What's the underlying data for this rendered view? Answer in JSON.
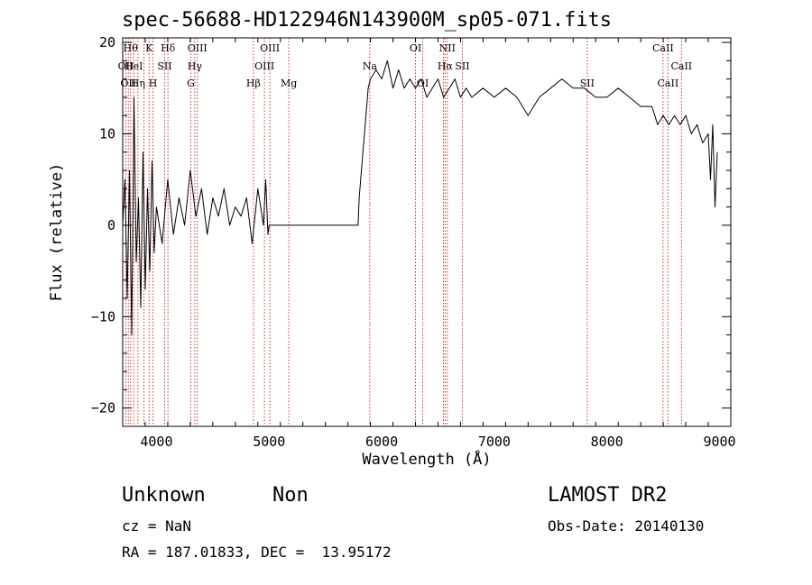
{
  "chart_data": {
    "type": "line",
    "title": "spec-56688-HD122946N143900M_sp05-071.fits",
    "xlabel": "Wavelength (Å)",
    "ylabel": "Flux (relative)",
    "xlim": [
      3700,
      9100
    ],
    "ylim": [
      -22,
      20.5
    ],
    "xticks": [
      4000,
      5000,
      6000,
      7000,
      8000,
      9000
    ],
    "xtick_labels": [
      "4000",
      "5000",
      "6000",
      "7000",
      "8000",
      "9000"
    ],
    "yticks": [
      -20,
      -10,
      0,
      10,
      20
    ],
    "ytick_labels": [
      "−20",
      "−10",
      "0",
      "10",
      "20"
    ],
    "grid": false,
    "series": [
      {
        "x": [
          3700,
          3720,
          3740,
          3760,
          3780,
          3800,
          3820,
          3840,
          3860,
          3880,
          3900,
          3920,
          3940,
          3960,
          3980,
          4000,
          4050,
          4100,
          4150,
          4200,
          4250,
          4300,
          4350,
          4400,
          4450,
          4500,
          4550,
          4600,
          4650,
          4700,
          4750,
          4800,
          4850,
          4900,
          4950,
          4970,
          4990,
          5000,
          5200,
          5400,
          5600,
          5790,
          5800,
          5820,
          5840,
          5860,
          5880,
          5900,
          5950,
          6000,
          6050,
          6100,
          6150,
          6200,
          6250,
          6300,
          6350,
          6400,
          6450,
          6500,
          6550,
          6600,
          6650,
          6700,
          6750,
          6800,
          6900,
          7000,
          7100,
          7200,
          7300,
          7400,
          7500,
          7600,
          7700,
          7800,
          7900,
          8000,
          8100,
          8200,
          8300,
          8400,
          8450,
          8500,
          8550,
          8600,
          8650,
          8700,
          8750,
          8800,
          8850,
          8900,
          8920,
          8940,
          8960,
          8980
        ],
        "y": [
          0,
          5,
          -8,
          6,
          -12,
          14,
          -4,
          3,
          -9,
          8,
          -7,
          4,
          -5,
          7,
          -3,
          2,
          -2,
          5,
          -1,
          3,
          0,
          6,
          1,
          4,
          -1,
          3,
          1,
          4,
          0,
          2,
          1,
          3,
          -2,
          4,
          0,
          5,
          -1,
          0,
          0,
          0,
          0,
          0,
          3,
          6,
          9,
          12,
          15,
          16,
          17,
          16,
          18,
          15,
          17,
          15,
          16,
          15,
          16,
          14,
          15,
          16,
          14,
          15,
          16,
          14,
          15,
          14,
          15,
          14,
          15,
          14,
          12,
          14,
          15,
          16,
          15,
          15,
          14,
          14,
          15,
          14,
          13,
          13,
          11,
          12,
          11,
          12,
          11,
          12,
          10,
          11,
          9,
          10,
          5,
          11,
          2,
          8
        ]
      }
    ],
    "lines": [
      {
        "x": 3728,
        "labels": [
          "OII"
        ]
      },
      {
        "x": 3750,
        "labels": [
          "OII"
        ]
      },
      {
        "x": 3770,
        "labels": [
          "Hθ"
        ]
      },
      {
        "x": 3798,
        "labels": [
          "HeI"
        ]
      },
      {
        "x": 3835,
        "labels": [
          "Hη"
        ]
      },
      {
        "x": 3889,
        "labels": [
          "HeI"
        ]
      },
      {
        "x": 3934,
        "labels": [
          "K"
        ]
      },
      {
        "x": 3969,
        "labels": [
          "H"
        ]
      },
      {
        "x": 4072,
        "labels": [
          "SII"
        ]
      },
      {
        "x": 4102,
        "labels": [
          "Hδ"
        ]
      },
      {
        "x": 4305,
        "labels": [
          "G"
        ]
      },
      {
        "x": 4340,
        "labels": [
          "Hγ"
        ]
      },
      {
        "x": 4363,
        "labels": [
          "OIII"
        ]
      },
      {
        "x": 4861,
        "labels": [
          "Hβ"
        ]
      },
      {
        "x": 4959,
        "labels": [
          "OIII"
        ]
      },
      {
        "x": 5007,
        "labels": [
          "OIII"
        ]
      },
      {
        "x": 5175,
        "labels": [
          "Mg"
        ]
      },
      {
        "x": 5894,
        "labels": [
          "Na"
        ]
      },
      {
        "x": 6300,
        "labels": [
          "OI"
        ]
      },
      {
        "x": 6364,
        "labels": [
          "OI"
        ]
      },
      {
        "x": 6548,
        "labels": [
          "NII"
        ]
      },
      {
        "x": 6563,
        "labels": [
          "Hα"
        ]
      },
      {
        "x": 6583,
        "labels": [
          "NII"
        ]
      },
      {
        "x": 6716,
        "labels": [
          "SII"
        ]
      },
      {
        "x": 7825,
        "labels": [
          "SII"
        ]
      },
      {
        "x": 8498,
        "labels": [
          "CaII"
        ]
      },
      {
        "x": 8542,
        "labels": [
          "CaII"
        ]
      },
      {
        "x": 8662,
        "labels": [
          "CaII"
        ]
      }
    ]
  },
  "line_labels": [
    {
      "text": "Hθ",
      "x": 3770,
      "row": 0
    },
    {
      "text": "K",
      "x": 3934,
      "row": 0
    },
    {
      "text": "Hδ",
      "x": 4102,
      "row": 0
    },
    {
      "text": "OIII",
      "x": 4363,
      "row": 0
    },
    {
      "text": "OIII",
      "x": 5007,
      "row": 0
    },
    {
      "text": "OI",
      "x": 6300,
      "row": 0
    },
    {
      "text": "NII",
      "x": 6583,
      "row": 0
    },
    {
      "text": "CaII",
      "x": 8498,
      "row": 0
    },
    {
      "text": "OII",
      "x": 3728,
      "row": 1
    },
    {
      "text": "HeI",
      "x": 3798,
      "row": 1
    },
    {
      "text": "SII",
      "x": 4072,
      "row": 1
    },
    {
      "text": "Hγ",
      "x": 4340,
      "row": 1
    },
    {
      "text": "OIII",
      "x": 4959,
      "row": 1
    },
    {
      "text": "Na",
      "x": 5894,
      "row": 1
    },
    {
      "text": "Hα",
      "x": 6563,
      "row": 1
    },
    {
      "text": "SII",
      "x": 6716,
      "row": 1
    },
    {
      "text": "CaII",
      "x": 8662,
      "row": 1
    },
    {
      "text": "OII",
      "x": 3750,
      "row": 2
    },
    {
      "text": "Hη",
      "x": 3835,
      "row": 2
    },
    {
      "text": "H",
      "x": 3969,
      "row": 2
    },
    {
      "text": "G",
      "x": 4305,
      "row": 2
    },
    {
      "text": "Hβ",
      "x": 4861,
      "row": 2
    },
    {
      "text": "Mg",
      "x": 5175,
      "row": 2
    },
    {
      "text": "OI",
      "x": 6364,
      "row": 2
    },
    {
      "text": "SII",
      "x": 7825,
      "row": 2
    },
    {
      "text": "CaII",
      "x": 8542,
      "row": 2
    }
  ],
  "info": {
    "class": "Unknown",
    "subclass": "Non",
    "survey": "LAMOST DR2",
    "cz": "cz = NaN",
    "obs_date": "Obs-Date: 20140130",
    "coords": "RA = 187.01833, DEC =  13.95172"
  },
  "colors": {
    "spectrum": "#000000",
    "line_markers": "#cc3333"
  }
}
